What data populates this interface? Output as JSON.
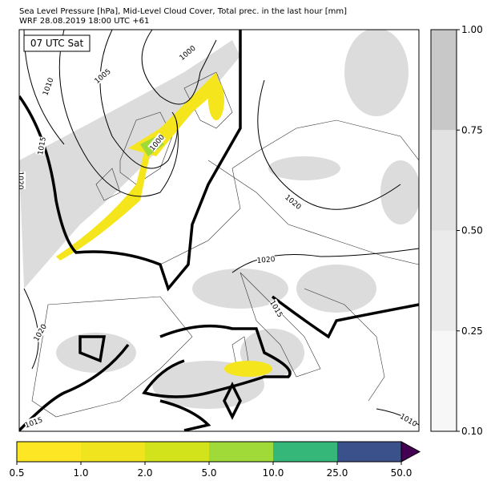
{
  "header": {
    "title": "Sea Level Pressure [hPa], Mid-Level Cloud Cover, Total prec. in the last hour [mm]",
    "subtitle": "WRF 28.08.2019 18:00 UTC +61"
  },
  "map": {
    "time_label": "07 UTC Sat",
    "contour_labels": [
      "1000",
      "1005",
      "1010",
      "1015",
      "1020",
      "1000",
      "1020",
      "1020",
      "1015",
      "1020",
      "1015",
      "1010"
    ]
  },
  "cloud_colorbar": {
    "colors": [
      "#f7f7f7",
      "#ebebeb",
      "#e2e2e2",
      "#c8c8c8"
    ],
    "ticks": [
      {
        "value": 0.1,
        "label": "0.10"
      },
      {
        "value": 0.25,
        "label": "0.25"
      },
      {
        "value": 0.5,
        "label": "0.50"
      },
      {
        "value": 0.75,
        "label": "0.75"
      },
      {
        "value": 1,
        "label": "1.00"
      }
    ]
  },
  "precip_colorbar": {
    "colors": [
      "#fde725",
      "#f0e41f",
      "#d2e21b",
      "#a0da39",
      "#35b779",
      "#3b518b"
    ],
    "extend_color": "#440154",
    "ticks": [
      {
        "value": 0.5,
        "label": "0.5"
      },
      {
        "value": 1,
        "label": "1.0"
      },
      {
        "value": 2,
        "label": "2.0"
      },
      {
        "value": 5,
        "label": "5.0"
      },
      {
        "value": 10,
        "label": "10.0"
      },
      {
        "value": 25,
        "label": "25.0"
      },
      {
        "value": 50,
        "label": "50.0"
      }
    ]
  }
}
